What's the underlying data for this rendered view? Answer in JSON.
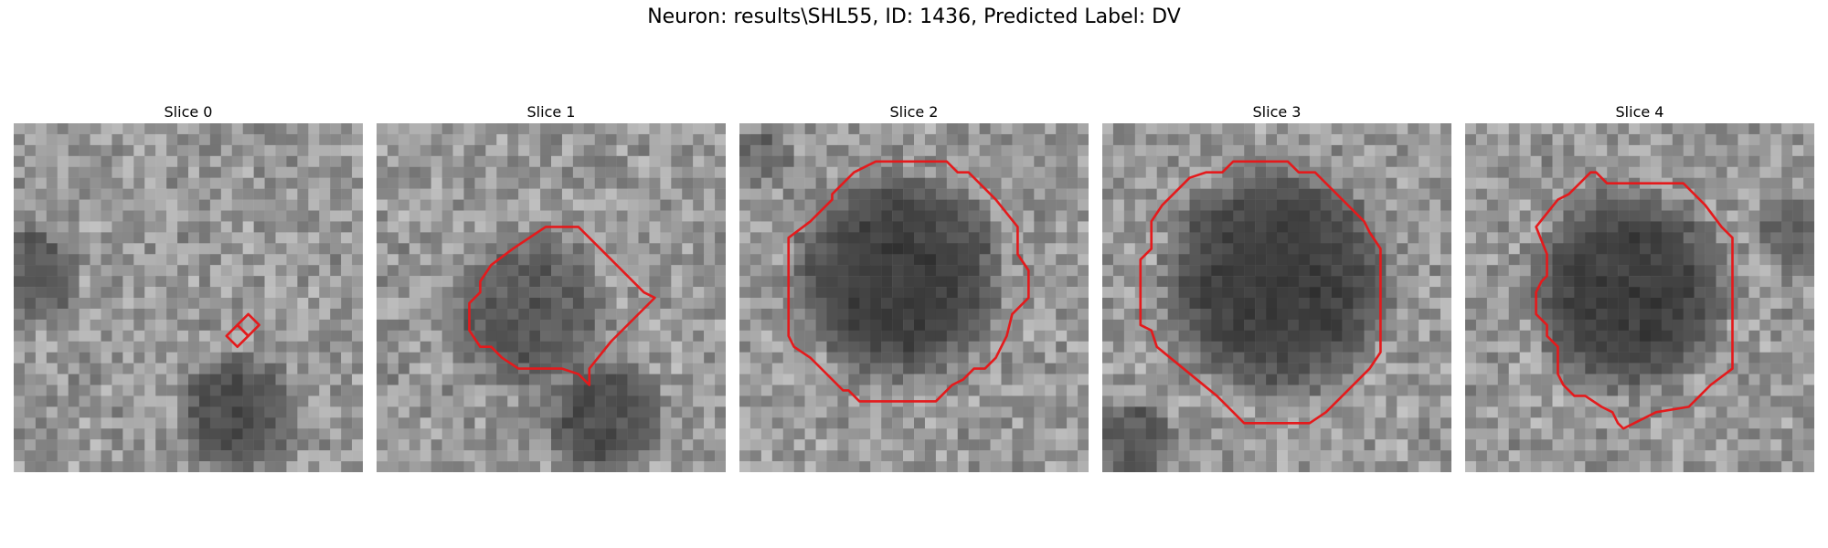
{
  "title": "Neuron: results\\SHL55, ID: 1436, Predicted Label: DV",
  "contour_color": "#e41a1c",
  "panels": [
    {
      "title": "Slice 0"
    },
    {
      "title": "Slice 1"
    },
    {
      "title": "Slice 2"
    },
    {
      "title": "Slice 3"
    },
    {
      "title": "Slice 4"
    }
  ]
}
